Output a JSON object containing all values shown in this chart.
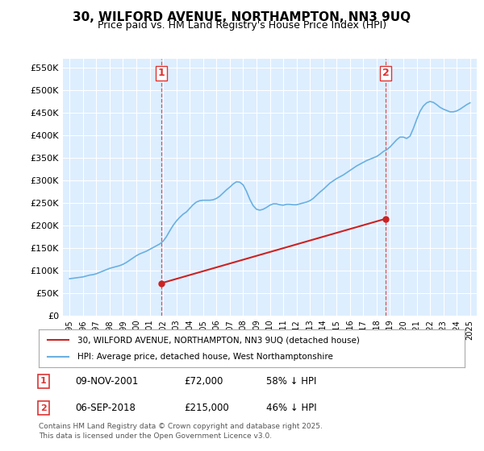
{
  "title": "30, WILFORD AVENUE, NORTHAMPTON, NN3 9UQ",
  "subtitle": "Price paid vs. HM Land Registry's House Price Index (HPI)",
  "background_color": "#ffffff",
  "plot_bg_color": "#ddeeff",
  "grid_color": "#ffffff",
  "ylim": [
    0,
    570000
  ],
  "yticks": [
    0,
    50000,
    100000,
    150000,
    200000,
    250000,
    300000,
    350000,
    400000,
    450000,
    500000,
    550000
  ],
  "ytick_labels": [
    "£0",
    "£50K",
    "£100K",
    "£150K",
    "£200K",
    "£250K",
    "£300K",
    "£350K",
    "£400K",
    "£450K",
    "£500K",
    "£550K"
  ],
  "xlim_start": 1994.5,
  "xlim_end": 2025.5,
  "xticks": [
    1995,
    1996,
    1997,
    1998,
    1999,
    2000,
    2001,
    2002,
    2003,
    2004,
    2005,
    2006,
    2007,
    2008,
    2009,
    2010,
    2011,
    2012,
    2013,
    2014,
    2015,
    2016,
    2017,
    2018,
    2019,
    2020,
    2021,
    2022,
    2023,
    2024,
    2025
  ],
  "hpi_color": "#6ab0e0",
  "price_color": "#cc2222",
  "vline_color": "#dd3333",
  "marker1_date": 2001.86,
  "marker1_price": 72000,
  "marker2_date": 2018.68,
  "marker2_price": 215000,
  "legend_entries": [
    "30, WILFORD AVENUE, NORTHAMPTON, NN3 9UQ (detached house)",
    "HPI: Average price, detached house, West Northamptonshire"
  ],
  "annotation1": {
    "label": "1",
    "date": "09-NOV-2001",
    "price": "£72,000",
    "note": "58% ↓ HPI"
  },
  "annotation2": {
    "label": "2",
    "date": "06-SEP-2018",
    "price": "£215,000",
    "note": "46% ↓ HPI"
  },
  "footer": "Contains HM Land Registry data © Crown copyright and database right 2025.\nThis data is licensed under the Open Government Licence v3.0.",
  "hpi_data": {
    "years": [
      1995.0,
      1995.25,
      1995.5,
      1995.75,
      1996.0,
      1996.25,
      1996.5,
      1996.75,
      1997.0,
      1997.25,
      1997.5,
      1997.75,
      1998.0,
      1998.25,
      1998.5,
      1998.75,
      1999.0,
      1999.25,
      1999.5,
      1999.75,
      2000.0,
      2000.25,
      2000.5,
      2000.75,
      2001.0,
      2001.25,
      2001.5,
      2001.75,
      2002.0,
      2002.25,
      2002.5,
      2002.75,
      2003.0,
      2003.25,
      2003.5,
      2003.75,
      2004.0,
      2004.25,
      2004.5,
      2004.75,
      2005.0,
      2005.25,
      2005.5,
      2005.75,
      2006.0,
      2006.25,
      2006.5,
      2006.75,
      2007.0,
      2007.25,
      2007.5,
      2007.75,
      2008.0,
      2008.25,
      2008.5,
      2008.75,
      2009.0,
      2009.25,
      2009.5,
      2009.75,
      2010.0,
      2010.25,
      2010.5,
      2010.75,
      2011.0,
      2011.25,
      2011.5,
      2011.75,
      2012.0,
      2012.25,
      2012.5,
      2012.75,
      2013.0,
      2013.25,
      2013.5,
      2013.75,
      2014.0,
      2014.25,
      2014.5,
      2014.75,
      2015.0,
      2015.25,
      2015.5,
      2015.75,
      2016.0,
      2016.25,
      2016.5,
      2016.75,
      2017.0,
      2017.25,
      2017.5,
      2017.75,
      2018.0,
      2018.25,
      2018.5,
      2018.75,
      2019.0,
      2019.25,
      2019.5,
      2019.75,
      2020.0,
      2020.25,
      2020.5,
      2020.75,
      2021.0,
      2021.25,
      2021.5,
      2021.75,
      2022.0,
      2022.25,
      2022.5,
      2022.75,
      2023.0,
      2023.25,
      2023.5,
      2023.75,
      2024.0,
      2024.25,
      2024.5,
      2024.75,
      2025.0
    ],
    "values": [
      82000,
      83000,
      84000,
      85000,
      86000,
      88000,
      90000,
      91000,
      93000,
      96000,
      99000,
      102000,
      105000,
      107000,
      109000,
      111000,
      114000,
      118000,
      123000,
      128000,
      133000,
      137000,
      140000,
      143000,
      147000,
      151000,
      155000,
      159000,
      165000,
      175000,
      188000,
      200000,
      210000,
      218000,
      225000,
      230000,
      238000,
      246000,
      252000,
      255000,
      256000,
      256000,
      256000,
      257000,
      260000,
      265000,
      272000,
      279000,
      285000,
      292000,
      297000,
      296000,
      290000,
      276000,
      258000,
      244000,
      236000,
      234000,
      236000,
      240000,
      245000,
      248000,
      248000,
      246000,
      245000,
      247000,
      247000,
      246000,
      246000,
      248000,
      250000,
      252000,
      255000,
      260000,
      267000,
      274000,
      280000,
      287000,
      294000,
      299000,
      304000,
      308000,
      312000,
      317000,
      322000,
      327000,
      332000,
      336000,
      340000,
      344000,
      347000,
      350000,
      353000,
      358000,
      364000,
      368000,
      374000,
      382000,
      390000,
      396000,
      396000,
      393000,
      398000,
      415000,
      435000,
      453000,
      465000,
      472000,
      475000,
      473000,
      468000,
      462000,
      458000,
      455000,
      452000,
      452000,
      454000,
      458000,
      463000,
      468000,
      472000
    ]
  },
  "price_data": {
    "years": [
      2001.86,
      2018.68
    ],
    "values": [
      72000,
      215000
    ]
  }
}
